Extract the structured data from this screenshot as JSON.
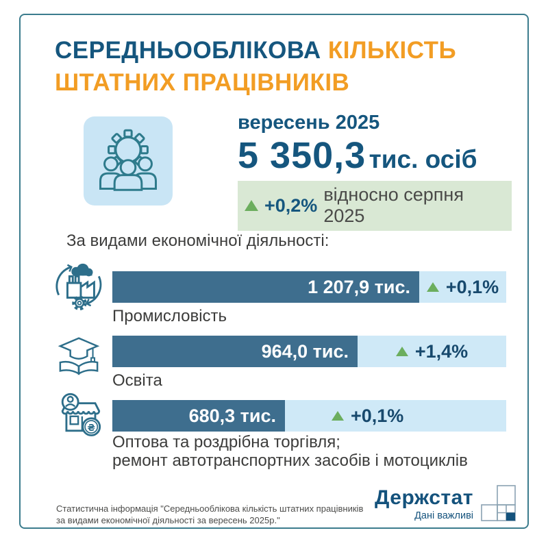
{
  "title": {
    "word1_blue": "СЕРЕДНЬООБЛІКОВА",
    "word2_orange": "КІЛЬКІСТЬ",
    "line2_orange": "ШТАТНИХ ПРАЦІВНИКІВ"
  },
  "hero": {
    "period": "вересень 2025",
    "value": "5 350,3",
    "unit": "тис. осіб",
    "change_pct": "+0,2%",
    "change_note": "відносно серпня 2025"
  },
  "section_heading": "За видами економічної діяльності:",
  "chart_data": {
    "type": "bar",
    "orientation": "horizontal",
    "title": "За видами економічної діяльності:",
    "unit": "тис. осіб",
    "categories": [
      "Промисловість",
      "Освіта",
      "Оптова та роздрібна торгівля; ремонт автотранспортних засобів і мотоциклів"
    ],
    "values": [
      1207.9,
      964.0,
      680.3
    ],
    "value_labels": [
      "1 207,9 тис.",
      "964,0 тис.",
      "680,3 тис."
    ],
    "changes": [
      "+0,1%",
      "+1,4%",
      "+0,1%"
    ],
    "bar_color": "#3e6e8e",
    "track_color": "#cfe9f7"
  },
  "rows": [
    {
      "label": "Промисловість",
      "value_label": "1 207,9 тис.",
      "change": "+0,1%"
    },
    {
      "label": "Освіта",
      "value_label": "964,0 тис.",
      "change": "+1,4%"
    },
    {
      "label": "Оптова та роздрібна торгівля;",
      "label2": "ремонт автотранспортних засобів і мотоциклів",
      "value_label": "680,3 тис.",
      "change": "+0,1%"
    }
  ],
  "footer": {
    "source_line1": "Статистична інформація \"Середньооблікова кількість штатних працівників",
    "source_line2": "за видами економічної діяльності за вересень 2025р.\"",
    "logo_name": "Держстат",
    "logo_tagline": "Дані важливі"
  },
  "colors": {
    "primary_blue": "#15567e",
    "accent_orange": "#f29d24",
    "bar_blue": "#3e6e8e",
    "bar_track": "#cfe9f7",
    "tile_blue": "#c9e5f5",
    "icon_teal": "#2e7b8c",
    "green_up": "#6cae5e",
    "badge_green_bg": "#d9e8d4",
    "text_dark": "#3c3c3b",
    "navy_logo": "#14527c",
    "card_border": "#3b7c8d"
  }
}
